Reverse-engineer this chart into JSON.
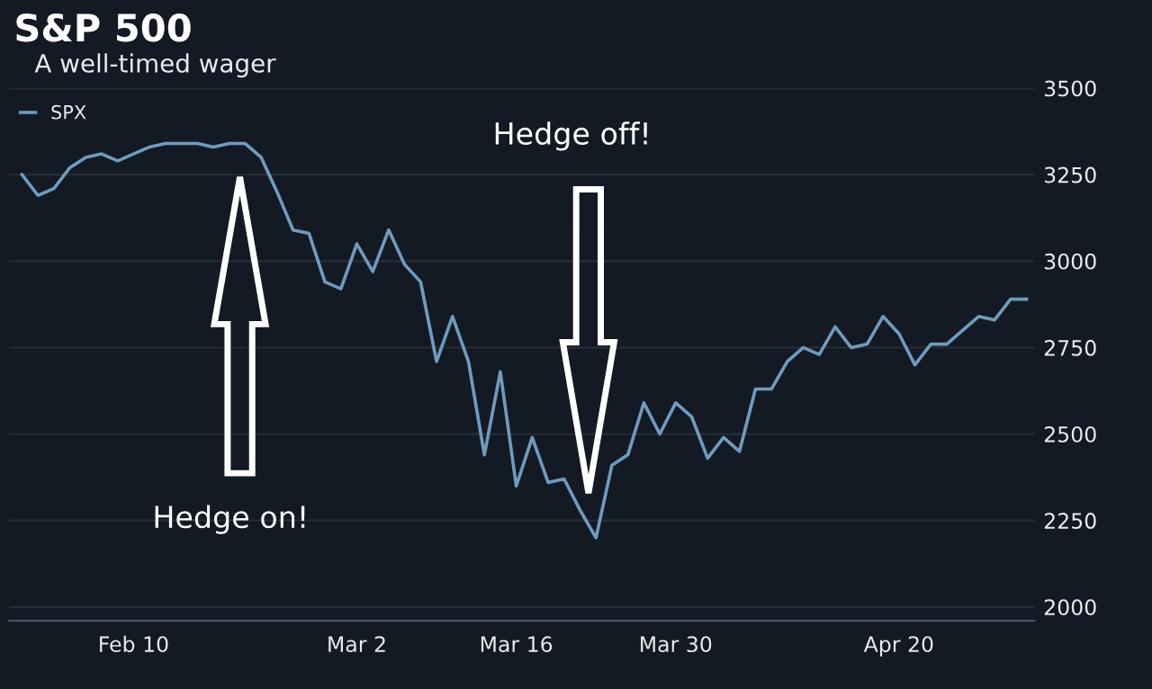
{
  "chart_data": {
    "type": "line",
    "title": "S&P 500",
    "subtitle": "A well-timed wager",
    "annotations": [
      "Hedge on!",
      "Hedge off!"
    ],
    "categories": [
      null,
      null,
      null,
      null,
      null,
      null,
      null,
      "Feb 10",
      null,
      null,
      null,
      null,
      null,
      null,
      null,
      null,
      null,
      null,
      null,
      null,
      null,
      "Mar 2",
      null,
      null,
      null,
      null,
      null,
      null,
      null,
      null,
      null,
      "Mar 16",
      null,
      null,
      null,
      null,
      null,
      null,
      null,
      null,
      null,
      "Mar 30",
      null,
      null,
      null,
      null,
      null,
      null,
      null,
      null,
      null,
      null,
      null,
      null,
      null,
      "Apr 20",
      null,
      null,
      null,
      null,
      null,
      null,
      null,
      null
    ],
    "series": [
      {
        "name": "SPX",
        "color": "#6f9bbf",
        "values": [
          3250,
          3190,
          3210,
          3270,
          3300,
          3310,
          3290,
          3310,
          3330,
          3340,
          3340,
          3340,
          3330,
          3340,
          3340,
          3300,
          3200,
          3090,
          3080,
          2940,
          2920,
          3050,
          2970,
          3090,
          2990,
          2940,
          2710,
          2840,
          2710,
          2440,
          2680,
          2350,
          2490,
          2360,
          2370,
          2280,
          2200,
          2410,
          2440,
          2590,
          2500,
          2590,
          2550,
          2430,
          2490,
          2450,
          2630,
          2630,
          2710,
          2750,
          2730,
          2810,
          2750,
          2760,
          2840,
          2790,
          2700,
          2760,
          2760,
          2800,
          2840,
          2830,
          2890,
          2890
        ]
      }
    ],
    "ylim": [
      1960,
      3500
    ],
    "yticks": [
      2000,
      2250,
      2500,
      2750,
      3000,
      3250,
      3500
    ],
    "grid": "y",
    "legend": "top left"
  }
}
